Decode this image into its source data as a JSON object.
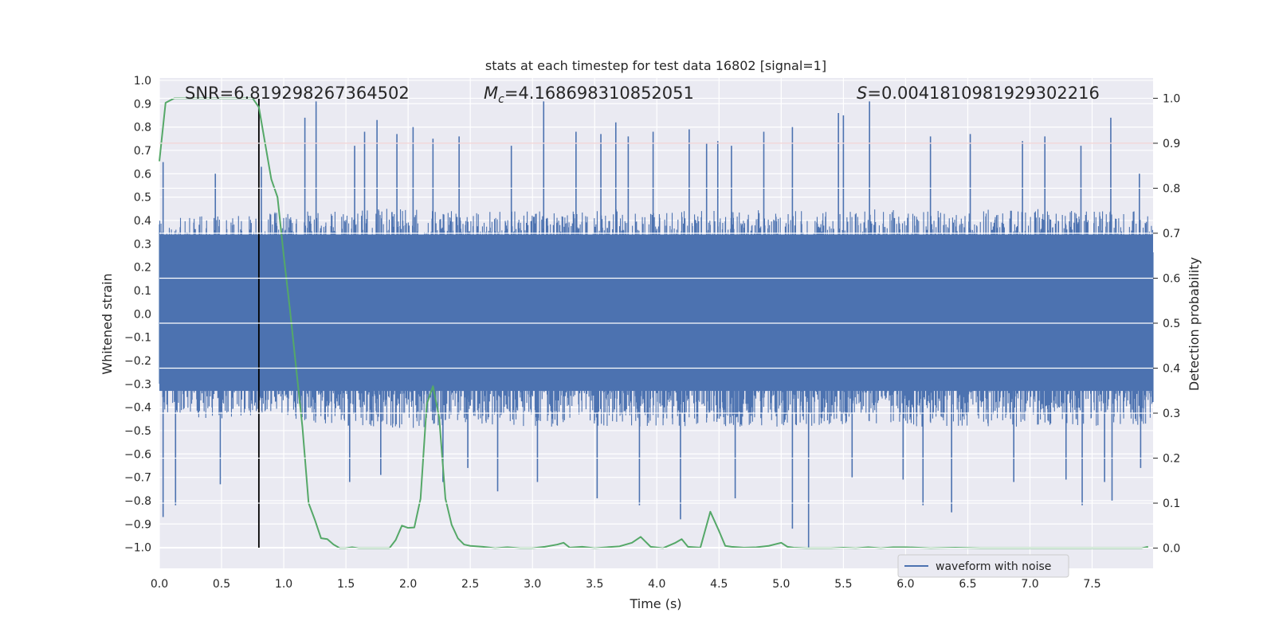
{
  "chart_data": {
    "type": "line",
    "title": "stats at each timestep for test data 16802 [signal=1]",
    "xlabel": "Time (s)",
    "ylabel": "Whitened strain",
    "y2label": "Detection probability",
    "xlim": [
      0.0,
      7.99
    ],
    "ylim": [
      -1.09,
      1.01
    ],
    "y2lim": [
      -0.045,
      1.045
    ],
    "x_ticks": [
      "0.0",
      "0.5",
      "1.0",
      "1.5",
      "2.0",
      "2.5",
      "3.0",
      "3.5",
      "4.0",
      "4.5",
      "5.0",
      "5.5",
      "6.0",
      "6.5",
      "7.0",
      "7.5"
    ],
    "y_ticks": [
      "1.0",
      "0.9",
      "0.8",
      "0.7",
      "0.6",
      "0.5",
      "0.4",
      "0.3",
      "0.2",
      "0.1",
      "0.0",
      "−0.1",
      "−0.2",
      "−0.3",
      "−0.4",
      "−0.5",
      "−0.6",
      "−0.7",
      "−0.8",
      "−0.9",
      "−1.0"
    ],
    "y2_ticks": [
      "1.0",
      "0.9",
      "0.8",
      "0.7",
      "0.6",
      "0.5",
      "0.4",
      "0.3",
      "0.2",
      "0.1",
      "0.0"
    ],
    "annotations": {
      "snr": "SNR=6.819298267364502",
      "mc_symbol": "M",
      "mc_sub": "c",
      "mc_value": "=4.168698310852051",
      "s_symbol": "S",
      "s_value": "=0.0041810981929302216"
    },
    "legend": {
      "label": "waveform with noise",
      "location": "lower-right"
    },
    "threshold_probability": 0.9,
    "merger_time": 0.8,
    "colors": {
      "waveform": "#4c72b0",
      "probability": "#55a868",
      "threshold": "#c44e52",
      "merger": "#000000",
      "axes_bg": "#eaeaf2",
      "grid": "#ffffff"
    },
    "waveform_envelope": {
      "times": [
        0.0,
        0.25,
        0.5,
        0.75,
        1.0,
        1.25,
        1.5,
        1.75,
        2.0,
        2.25,
        2.5,
        2.75,
        3.0,
        3.25,
        3.5,
        3.75,
        4.0,
        4.25,
        4.5,
        4.75,
        5.0,
        5.25,
        5.5,
        5.75,
        6.0,
        6.25,
        6.5,
        6.75,
        7.0,
        7.25,
        7.5,
        7.75,
        7.99
      ],
      "upper_base": [
        0.38,
        0.4,
        0.4,
        0.4,
        0.42,
        0.42,
        0.42,
        0.43,
        0.43,
        0.42,
        0.42,
        0.42,
        0.42,
        0.42,
        0.42,
        0.43,
        0.42,
        0.42,
        0.42,
        0.42,
        0.43,
        0.42,
        0.42,
        0.43,
        0.42,
        0.42,
        0.42,
        0.43,
        0.43,
        0.42,
        0.42,
        0.42,
        0.42
      ],
      "lower_base": [
        -0.4,
        -0.42,
        -0.43,
        -0.43,
        -0.44,
        -0.46,
        -0.46,
        -0.46,
        -0.47,
        -0.46,
        -0.46,
        -0.46,
        -0.46,
        -0.46,
        -0.46,
        -0.46,
        -0.46,
        -0.46,
        -0.46,
        -0.46,
        -0.46,
        -0.46,
        -0.46,
        -0.46,
        -0.46,
        -0.46,
        -0.46,
        -0.46,
        -0.46,
        -0.46,
        -0.46,
        -0.46,
        -0.46
      ],
      "core_upper": 0.34,
      "core_lower": -0.33,
      "upper_spikes": [
        [
          0.03,
          0.65
        ],
        [
          0.45,
          0.6
        ],
        [
          0.82,
          0.63
        ],
        [
          1.17,
          0.84
        ],
        [
          1.26,
          0.91
        ],
        [
          1.57,
          0.72
        ],
        [
          1.65,
          0.78
        ],
        [
          1.75,
          0.83
        ],
        [
          1.91,
          0.77
        ],
        [
          2.04,
          0.8
        ],
        [
          2.2,
          0.75
        ],
        [
          2.41,
          0.76
        ],
        [
          2.83,
          0.72
        ],
        [
          3.09,
          0.91
        ],
        [
          3.35,
          0.78
        ],
        [
          3.55,
          0.77
        ],
        [
          3.67,
          0.82
        ],
        [
          3.77,
          0.76
        ],
        [
          3.97,
          0.78
        ],
        [
          4.26,
          0.79
        ],
        [
          4.4,
          0.73
        ],
        [
          4.49,
          0.74
        ],
        [
          4.6,
          0.72
        ],
        [
          4.86,
          0.78
        ],
        [
          5.09,
          0.8
        ],
        [
          5.46,
          0.86
        ],
        [
          5.5,
          0.85
        ],
        [
          5.71,
          0.91
        ],
        [
          6.2,
          0.76
        ],
        [
          6.52,
          0.77
        ],
        [
          6.94,
          0.74
        ],
        [
          7.12,
          0.76
        ],
        [
          7.41,
          0.72
        ],
        [
          7.65,
          0.84
        ],
        [
          7.88,
          0.6
        ]
      ],
      "lower_spikes": [
        [
          0.03,
          -0.87
        ],
        [
          0.13,
          -0.82
        ],
        [
          0.49,
          -0.73
        ],
        [
          1.53,
          -0.72
        ],
        [
          1.78,
          -0.69
        ],
        [
          2.28,
          -0.72
        ],
        [
          2.48,
          -0.66
        ],
        [
          2.72,
          -0.76
        ],
        [
          3.04,
          -0.72
        ],
        [
          3.52,
          -0.79
        ],
        [
          3.86,
          -0.82
        ],
        [
          4.19,
          -0.88
        ],
        [
          4.63,
          -0.79
        ],
        [
          5.09,
          -0.92
        ],
        [
          5.22,
          -1.0
        ],
        [
          5.57,
          -0.7
        ],
        [
          5.98,
          -0.71
        ],
        [
          6.14,
          -0.82
        ],
        [
          6.37,
          -0.85
        ],
        [
          6.87,
          -0.72
        ],
        [
          7.29,
          -0.71
        ],
        [
          7.42,
          -0.82
        ],
        [
          7.6,
          -0.72
        ],
        [
          7.66,
          -0.8
        ],
        [
          7.89,
          -0.66
        ]
      ]
    },
    "series": [
      {
        "name": "Detection probability",
        "axis": "right",
        "x": [
          0.0,
          0.05,
          0.12,
          0.3,
          0.5,
          0.7,
          0.75,
          0.8,
          0.85,
          0.9,
          0.95,
          1.0,
          1.05,
          1.1,
          1.15,
          1.2,
          1.25,
          1.3,
          1.35,
          1.4,
          1.45,
          1.5,
          1.55,
          1.6,
          1.65,
          1.7,
          1.75,
          1.8,
          1.85,
          1.9,
          1.95,
          2.0,
          2.05,
          2.1,
          2.15,
          2.2,
          2.25,
          2.3,
          2.35,
          2.4,
          2.45,
          2.5,
          2.6,
          2.7,
          2.8,
          2.9,
          3.0,
          3.1,
          3.2,
          3.25,
          3.3,
          3.4,
          3.5,
          3.6,
          3.7,
          3.8,
          3.87,
          3.95,
          4.05,
          4.15,
          4.2,
          4.25,
          4.35,
          4.43,
          4.5,
          4.55,
          4.6,
          4.7,
          4.8,
          4.9,
          5.0,
          5.05,
          5.1,
          5.2,
          5.3,
          5.4,
          5.5,
          5.6,
          5.7,
          5.8,
          5.9,
          6.0,
          6.2,
          6.4,
          6.6,
          6.8,
          7.0,
          7.2,
          7.4,
          7.6,
          7.8,
          7.9,
          7.95
        ],
        "values": [
          0.86,
          0.99,
          1.0,
          1.0,
          1.0,
          1.0,
          1.0,
          0.98,
          0.9,
          0.82,
          0.78,
          0.65,
          0.53,
          0.4,
          0.27,
          0.1,
          0.063,
          0.022,
          0.02,
          0.008,
          0.0,
          0.0,
          0.002,
          0.0,
          0.0,
          0.0,
          0.0,
          0.0,
          0.0,
          0.018,
          0.05,
          0.045,
          0.046,
          0.11,
          0.32,
          0.36,
          0.29,
          0.11,
          0.052,
          0.022,
          0.008,
          0.005,
          0.003,
          0.0,
          0.002,
          0.0,
          0.0,
          0.003,
          0.008,
          0.012,
          0.001,
          0.003,
          0.0,
          0.002,
          0.004,
          0.012,
          0.025,
          0.003,
          0.0,
          0.012,
          0.02,
          0.003,
          0.001,
          0.081,
          0.038,
          0.005,
          0.003,
          0.001,
          0.002,
          0.005,
          0.012,
          0.003,
          0.001,
          0.0,
          0.0,
          0.0,
          0.001,
          0.0,
          0.002,
          0.0,
          0.002,
          0.002,
          0.0,
          0.001,
          0.0,
          0.0,
          0.0,
          0.0,
          0.0,
          0.0,
          0.0,
          0.0,
          0.003
        ]
      }
    ]
  }
}
